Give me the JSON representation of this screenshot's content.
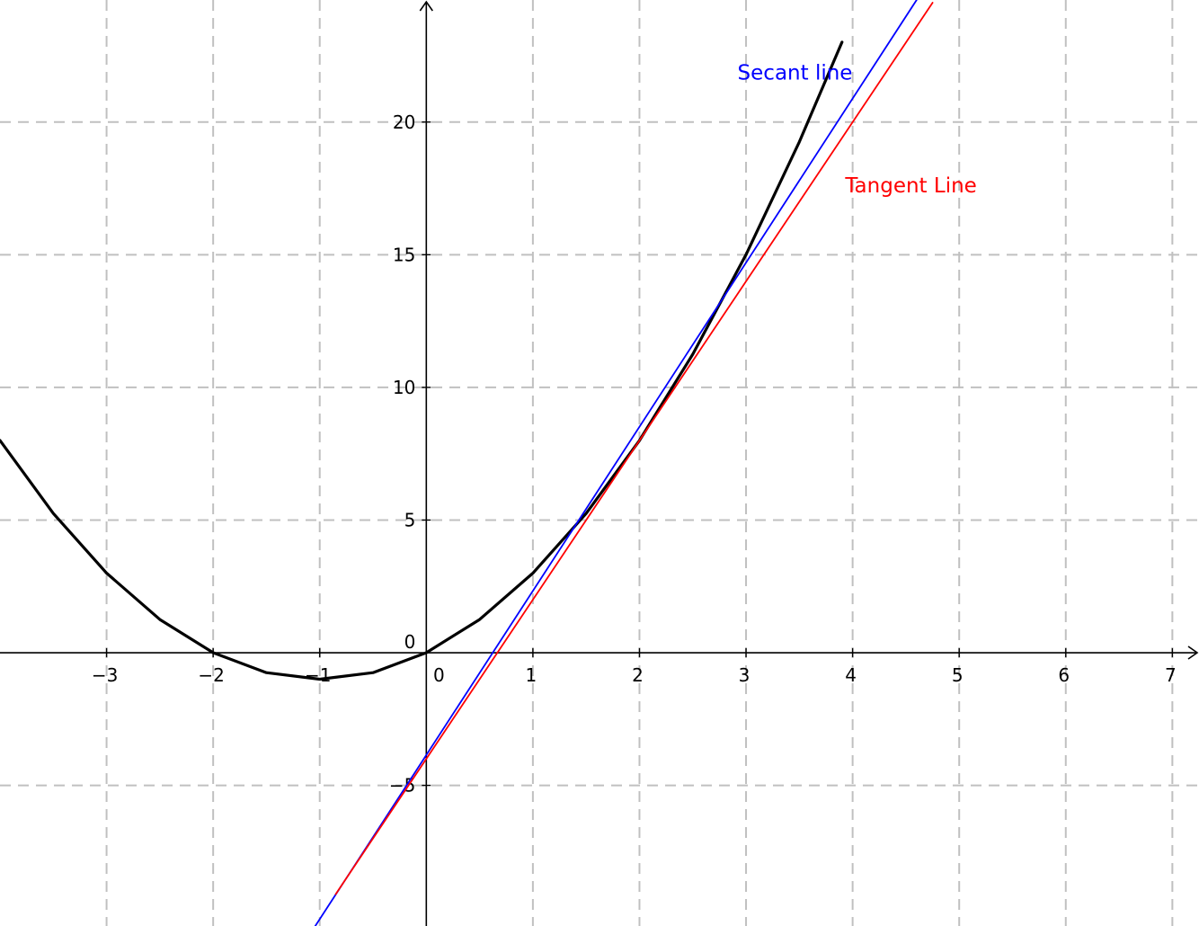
{
  "chart_data": {
    "type": "line",
    "xlim": [
      -4,
      7.25
    ],
    "ylim": [
      -10.3,
      24.6
    ],
    "grid": true,
    "grid_style": "dashed",
    "x_ticks": [
      -3,
      -2,
      -1,
      0,
      1,
      2,
      3,
      4,
      5,
      6,
      7
    ],
    "y_ticks": [
      -5,
      0,
      5,
      10,
      15,
      20
    ],
    "x_tick_labels": [
      "−3",
      "−2",
      "−1",
      "0",
      "1",
      "2",
      "3",
      "4",
      "5",
      "6",
      "7"
    ],
    "y_tick_labels": [
      "−5",
      "0",
      "5",
      "10",
      "15",
      "20"
    ],
    "series": [
      {
        "role": "curve",
        "color": "#000000",
        "x": [
          -4,
          -3.5,
          -3,
          -2.5,
          -2,
          -1.5,
          -1,
          -0.5,
          0,
          0.5,
          1,
          1.5,
          2,
          2.5,
          3,
          3.5,
          3.9
        ],
        "y": [
          8,
          5.25,
          3,
          1.25,
          0,
          -0.75,
          -1,
          -0.75,
          0,
          1.25,
          3,
          5.25,
          8,
          11.25,
          15,
          19.25,
          23.01
        ]
      },
      {
        "role": "secant",
        "name": "Secant line",
        "color": "#0000ff",
        "x": [
          -1.05,
          4.6
        ],
        "y": [
          -10.35,
          24.6
        ]
      },
      {
        "role": "tangent",
        "name": "Tangent Line",
        "color": "#ff0000",
        "x": [
          -0.85,
          4.75
        ],
        "y": [
          -9.1,
          24.5
        ]
      }
    ],
    "annotations": [
      {
        "text": "Secant line",
        "x": 2.92,
        "y": 21.6,
        "color": "#0000ff"
      },
      {
        "text": "Tangent Line",
        "x": 3.93,
        "y": 17.35,
        "color": "#ff0000"
      }
    ]
  }
}
